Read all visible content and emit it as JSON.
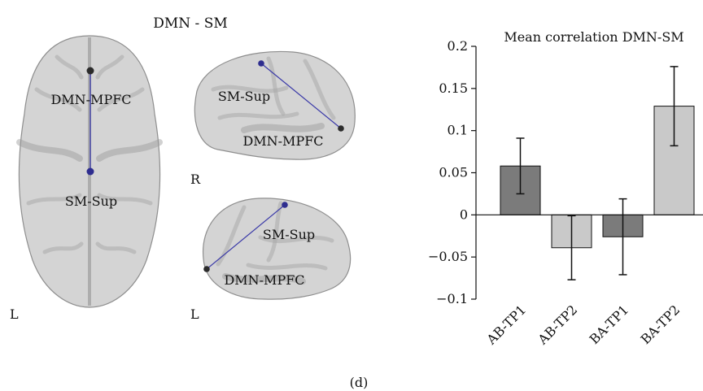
{
  "figure": {
    "panel_title": "DMN - SM",
    "panel_caption": "(d)",
    "views": {
      "axial": {
        "side_label": "L",
        "nodes": [
          {
            "label": "DMN-MPFC",
            "color": "#2b2b2b"
          },
          {
            "label": "SM-Sup",
            "color": "#2e2d8f"
          }
        ]
      },
      "sagittal_right": {
        "side_label": "R",
        "nodes": [
          {
            "label": "SM-Sup",
            "color": "#2e2d8f"
          },
          {
            "label": "DMN-MPFC",
            "color": "#2b2b2b"
          }
        ]
      },
      "sagittal_left": {
        "side_label": "L",
        "nodes": [
          {
            "label": "SM-Sup",
            "color": "#2e2d8f"
          },
          {
            "label": "DMN-MPFC",
            "color": "#2b2b2b"
          }
        ]
      }
    },
    "connection_color": "#3b3aa8"
  },
  "chart_data": {
    "type": "bar",
    "title": "Mean correlation DMN-SM",
    "xlabel": "",
    "ylabel": "",
    "ylim": [
      -0.1,
      0.2
    ],
    "yticks": [
      -0.1,
      -0.05,
      0,
      0.05,
      0.1,
      0.15,
      0.2
    ],
    "ytick_labels": [
      "−0.1",
      "−0.05",
      "0",
      "0.05",
      "0.1",
      "0.15",
      "0.2"
    ],
    "categories": [
      "AB-TP1",
      "AB-TP2",
      "BA-TP1",
      "BA-TP2"
    ],
    "values": [
      0.058,
      -0.039,
      -0.026,
      0.129
    ],
    "error": [
      0.033,
      0.038,
      0.045,
      0.047
    ],
    "colors": [
      "#7b7b7b",
      "#c9c9c9",
      "#7b7b7b",
      "#c9c9c9"
    ],
    "grid": false,
    "legend": "none"
  }
}
